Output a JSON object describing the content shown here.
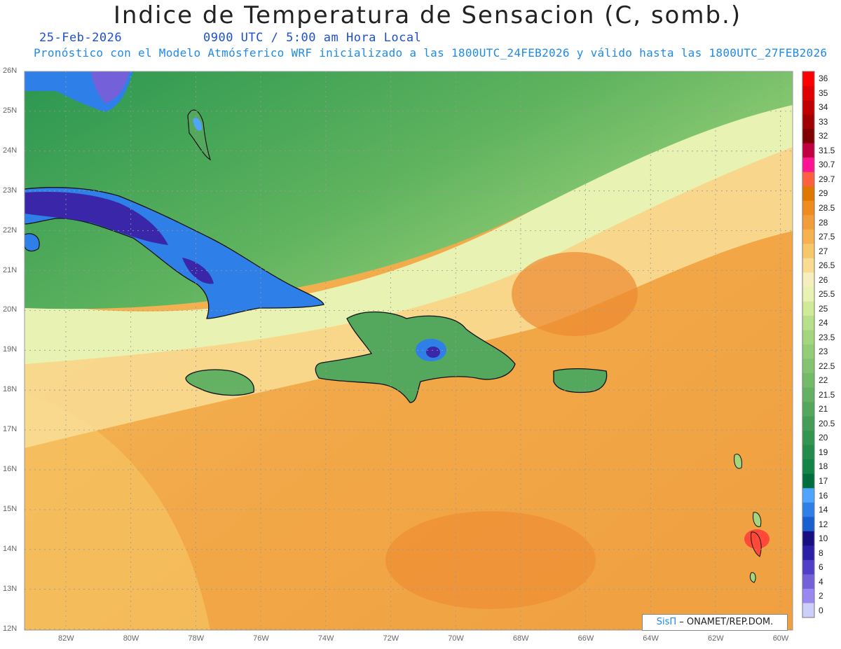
{
  "header": {
    "title": "Indice de Temperatura de Sensacion (C, somb.)",
    "date": "25-Feb-2026",
    "time": "0900 UTC / 5:00 am Hora Local",
    "subtitle": "Pronóstico con el Modelo Atmósferico WRF inicializado a las 1800UTC_24FEB2026 y válido hasta las  1800UTC_27FEB2026"
  },
  "axes": {
    "lat_labels": [
      "26N",
      "25N",
      "24N",
      "23N",
      "22N",
      "21N",
      "20N",
      "19N",
      "18N",
      "17N",
      "16N",
      "15N",
      "14N",
      "13N",
      "12N"
    ],
    "lon_labels": [
      "82W",
      "80W",
      "78W",
      "76W",
      "74W",
      "72W",
      "70W",
      "68W",
      "66W",
      "64W",
      "62W",
      "60W"
    ]
  },
  "colorbar": {
    "levels": [
      "36",
      "35",
      "34",
      "33",
      "32",
      "31.5",
      "30.7",
      "29.7",
      "29",
      "28.5",
      "28",
      "27.5",
      "27",
      "26.5",
      "26",
      "25.5",
      "25",
      "24",
      "23.5",
      "23",
      "22.5",
      "22",
      "21.5",
      "21",
      "20.5",
      "20",
      "19",
      "18",
      "17",
      "16",
      "14",
      "12",
      "10",
      "8",
      "6",
      "4",
      "2",
      "0"
    ],
    "colors": [
      "#ff0000",
      "#e00000",
      "#c00000",
      "#a00000",
      "#800000",
      "#c00040",
      "#ff1493",
      "#ff6040",
      "#e07800",
      "#f08c1e",
      "#f29d3a",
      "#f5b24f",
      "#f7c86a",
      "#f8dc92",
      "#f5eebd",
      "#e8f2b2",
      "#d0eb98",
      "#b8e08a",
      "#a4d67e",
      "#94cd77",
      "#84c470",
      "#74bb69",
      "#64b163",
      "#54a85d",
      "#449e57",
      "#349551",
      "#248c4b",
      "#138445",
      "#006e3c",
      "#4ea4ff",
      "#2f7fe8",
      "#1a5ed0",
      "#1a0f80",
      "#2c20a8",
      "#5040c8",
      "#7460d8",
      "#9a88f0",
      "#cccff8"
    ]
  },
  "map": {
    "colors": {
      "ocean_warm": "#f0a040",
      "ocean_mid": "#f5c060",
      "pale": "#f5eebd",
      "green_light": "#a4d67e",
      "green_mid": "#5fb35e",
      "green_dark": "#2a9650",
      "cuba_blue": "#2f7fe8",
      "cuba_purple": "#3a26a8",
      "hot_spot": "#ff4a3a"
    }
  },
  "credit": {
    "brand": "SisΠ",
    "text": "– ONAMET/REP.DOM."
  }
}
